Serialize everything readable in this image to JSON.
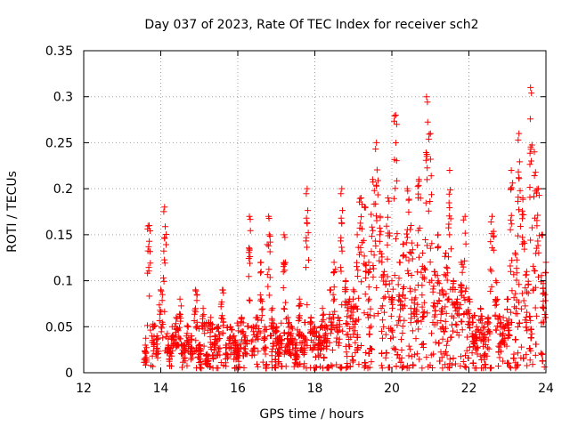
{
  "chart_data": {
    "type": "scatter",
    "title": "Day 037 of 2023, Rate Of TEC Index for receiver sch2",
    "xlabel": "GPS time / hours",
    "ylabel": "ROTI / TECUs",
    "xlim": [
      12,
      24
    ],
    "ylim": [
      0,
      0.35
    ],
    "x_ticks": [
      "12",
      "14",
      "16",
      "18",
      "20",
      "22",
      "24"
    ],
    "y_ticks": [
      "0",
      "0.05",
      "0.1",
      "0.15",
      "0.2",
      "0.25",
      "0.3",
      "0.35"
    ],
    "grid": true,
    "marker": "+",
    "color": "#ff0000",
    "series": [
      {
        "x": [
          13.6,
          13.7,
          13.8,
          13.9,
          14.0,
          14.1,
          14.2,
          14.3,
          14.4,
          14.5,
          14.6,
          14.7,
          14.8,
          14.9,
          15.0,
          15.1,
          15.2,
          15.3,
          15.4,
          15.5,
          15.6,
          15.7,
          15.8,
          15.9,
          16.0,
          16.1,
          16.2,
          16.3,
          16.4,
          16.5,
          16.6,
          16.7,
          16.8,
          16.9,
          17.0,
          17.1,
          17.2,
          17.3,
          17.4,
          17.5,
          17.6,
          17.7,
          17.8,
          17.9,
          18.0,
          18.1,
          18.2,
          18.3,
          18.4,
          18.5,
          18.6,
          18.7,
          18.8,
          18.9,
          19.0,
          19.1,
          19.2,
          19.3,
          19.4,
          19.5,
          19.6,
          19.7,
          19.8,
          19.9,
          20.0,
          20.1,
          20.2,
          20.3,
          20.4,
          20.5,
          20.6,
          20.7,
          20.8,
          20.9,
          21.0,
          21.1,
          21.2,
          21.3,
          21.4,
          21.5,
          21.6,
          21.7,
          21.8,
          21.9,
          22.0,
          22.1,
          22.2,
          22.3,
          22.4,
          22.5,
          22.6,
          22.7,
          22.8,
          22.9,
          23.0,
          23.1,
          23.2,
          23.3,
          23.4,
          23.5,
          23.6,
          23.7,
          23.8,
          23.9,
          24.0
        ],
        "y": [
          0.03,
          0.16,
          0.05,
          0.04,
          0.09,
          0.18,
          0.03,
          0.04,
          0.06,
          0.08,
          0.03,
          0.05,
          0.04,
          0.09,
          0.03,
          0.07,
          0.02,
          0.06,
          0.04,
          0.05,
          0.09,
          0.03,
          0.05,
          0.04,
          0.03,
          0.06,
          0.04,
          0.17,
          0.05,
          0.06,
          0.12,
          0.05,
          0.17,
          0.07,
          0.05,
          0.04,
          0.15,
          0.06,
          0.05,
          0.03,
          0.08,
          0.04,
          0.2,
          0.06,
          0.05,
          0.04,
          0.07,
          0.05,
          0.09,
          0.12,
          0.06,
          0.2,
          0.1,
          0.08,
          0.09,
          0.15,
          0.19,
          0.18,
          0.12,
          0.21,
          0.25,
          0.17,
          0.11,
          0.19,
          0.1,
          0.28,
          0.12,
          0.14,
          0.2,
          0.16,
          0.09,
          0.21,
          0.13,
          0.3,
          0.26,
          0.11,
          0.15,
          0.09,
          0.13,
          0.22,
          0.1,
          0.08,
          0.12,
          0.17,
          0.08,
          0.06,
          0.05,
          0.07,
          0.05,
          0.06,
          0.17,
          0.1,
          0.06,
          0.05,
          0.08,
          0.22,
          0.13,
          0.26,
          0.19,
          0.11,
          0.31,
          0.24,
          0.2,
          0.15,
          0.12
        ]
      }
    ],
    "point_count": 2600,
    "notes": "Dense scatter of '+' markers; baseline cluster 0.005-0.05 TECU from 13.6 h to 24 h with spikes listed above."
  }
}
